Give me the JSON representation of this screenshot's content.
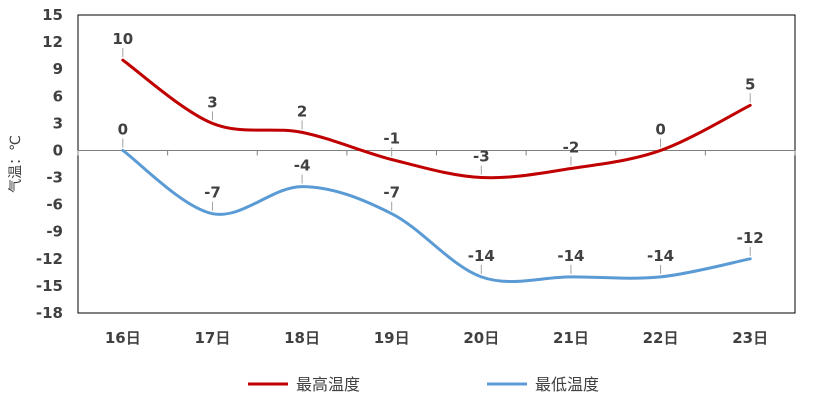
{
  "chart_data": {
    "type": "line",
    "categories": [
      "16日",
      "17日",
      "18日",
      "19日",
      "20日",
      "21日",
      "22日",
      "23日"
    ],
    "series": [
      {
        "name": "最高温度",
        "values": [
          10,
          3,
          2,
          -1,
          -3,
          -2,
          0,
          5
        ],
        "labels": [
          "10",
          "3",
          "2",
          "-1",
          "-3",
          "-2",
          "0",
          "5"
        ],
        "color": "#C00000"
      },
      {
        "name": "最低温度",
        "values": [
          0,
          -7,
          -4,
          -7,
          -14,
          -14,
          -14,
          -12
        ],
        "labels": [
          "0",
          "-7",
          "-4",
          "-7",
          "-14",
          "-14",
          "-14",
          "-12"
        ],
        "color": "#5B9BD5"
      }
    ],
    "ylabel": "气温：℃",
    "ylim": [
      -18,
      15
    ],
    "yticks": [
      "15",
      "12",
      "9",
      "6",
      "3",
      "0",
      "-3",
      "-6",
      "-9",
      "-12",
      "-15",
      "-18"
    ],
    "ytick_values": [
      15,
      12,
      9,
      6,
      3,
      0,
      -3,
      -6,
      -9,
      -12,
      -15,
      -18
    ],
    "smooth": true,
    "grid": false,
    "legend_position": "bottom"
  }
}
